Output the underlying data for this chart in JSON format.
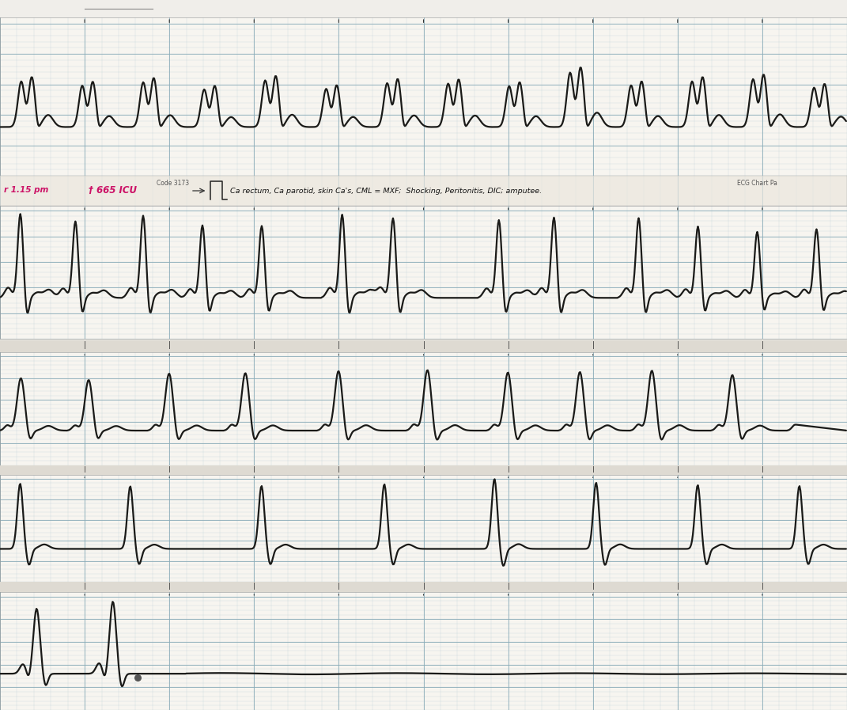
{
  "fig_width": 10.71,
  "fig_height": 8.97,
  "dpi": 100,
  "bg_color": "#e8e8e4",
  "paper_color": "#f7f5f0",
  "margin_color": "#e0ddd6",
  "grid_minor_color": "#b8ccd4",
  "grid_major_color": "#8aacb8",
  "ecg_color": "#1a1a18",
  "ecg_linewidth": 1.6,
  "annotation_text": "Ca rectum, Ca parotid, skin Ca's, CML = MXF;  Shocking, Peritonitis, DIC; amputee.",
  "annotation_left1": "r 1.15 pm",
  "annotation_left2": "† 665 ICU",
  "code_text": "Code 3173",
  "ecg_chart_text": "ECG Chart Pa"
}
